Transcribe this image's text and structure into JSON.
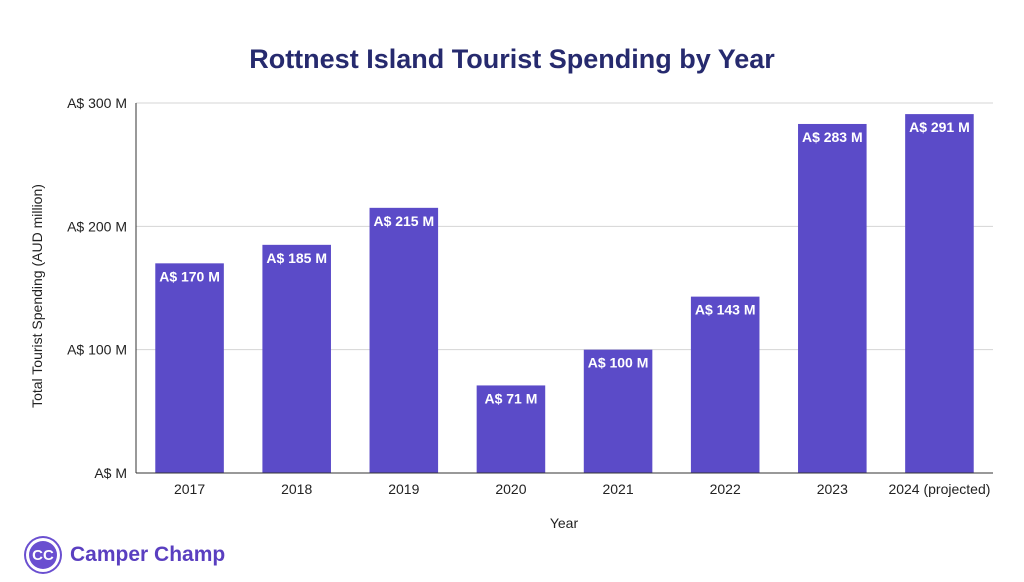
{
  "brand": {
    "logo_text": "CC",
    "name": "Camper Champ",
    "color": "#6a4fd0"
  },
  "chart_data": {
    "type": "bar",
    "title": "Rottnest Island Tourist Spending by Year",
    "xlabel": "Year",
    "ylabel": "Total Tourist Spending (AUD million)",
    "categories": [
      "2017",
      "2018",
      "2019",
      "2020",
      "2021",
      "2022",
      "2023",
      "2024 (projected)"
    ],
    "values": [
      170,
      185,
      215,
      71,
      100,
      143,
      283,
      291
    ],
    "data_labels": [
      "A$ 170 M",
      "A$ 185 M",
      "A$ 215 M",
      "A$ 71 M",
      "A$ 100 M",
      "A$ 143 M",
      "A$ 283 M",
      "A$ 291 M"
    ],
    "ylim": [
      0,
      300
    ],
    "yticks": [
      0,
      100,
      200,
      300
    ],
    "ytick_labels": [
      "A$  M",
      "A$ 100 M",
      "A$ 200 M",
      "A$ 300 M"
    ],
    "bar_color": "#5b4bc8",
    "grid": true,
    "legend": "none"
  }
}
